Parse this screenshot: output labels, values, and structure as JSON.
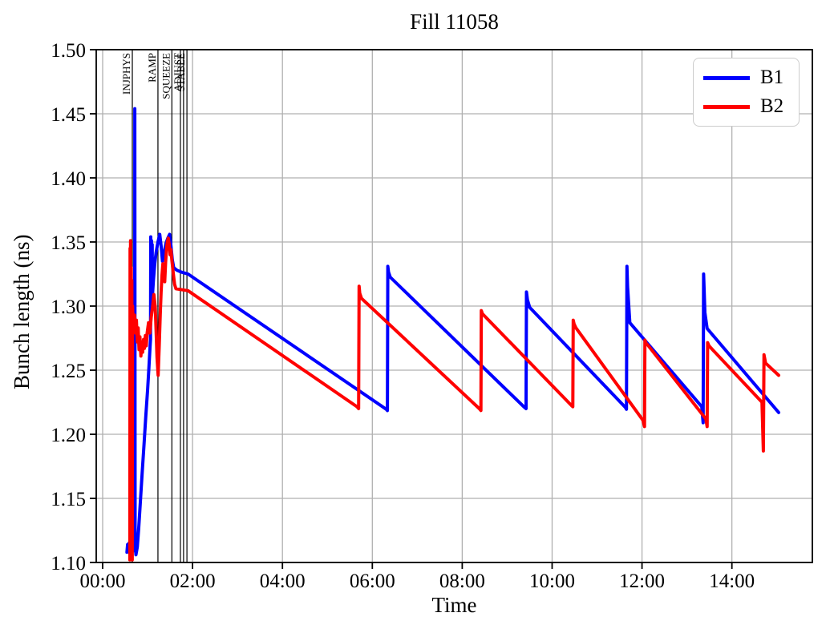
{
  "figure": {
    "background": "#ffffff"
  },
  "chart_data": {
    "type": "line",
    "title": "Fill 11058",
    "xlabel": "Time",
    "ylabel": "Bunch length (ns)",
    "xlim_hours": [
      -0.143,
      15.79
    ],
    "ylim": [
      1.1,
      1.5
    ],
    "grid": true,
    "grid_color": "#b0b0b0",
    "axis_color": "#000000",
    "x_ticks": [
      {
        "t": 0,
        "label": "00:00"
      },
      {
        "t": 2,
        "label": "02:00"
      },
      {
        "t": 4,
        "label": "04:00"
      },
      {
        "t": 6,
        "label": "06:00"
      },
      {
        "t": 8,
        "label": "08:00"
      },
      {
        "t": 10,
        "label": "10:00"
      },
      {
        "t": 12,
        "label": "12:00"
      },
      {
        "t": 14,
        "label": "14:00"
      }
    ],
    "y_ticks": [
      {
        "v": 1.1,
        "label": "1.10"
      },
      {
        "v": 1.15,
        "label": "1.15"
      },
      {
        "v": 1.2,
        "label": "1.20"
      },
      {
        "v": 1.25,
        "label": "1.25"
      },
      {
        "v": 1.3,
        "label": "1.30"
      },
      {
        "v": 1.35,
        "label": "1.35"
      },
      {
        "v": 1.4,
        "label": "1.40"
      },
      {
        "v": 1.45,
        "label": "1.45"
      },
      {
        "v": 1.5,
        "label": "1.50"
      }
    ],
    "mode_lines": [
      {
        "t": 0.66,
        "label": "INJPHYS"
      },
      {
        "t": 1.23,
        "label": "RAMP"
      },
      {
        "t": 1.54,
        "label": "SQUEEZE"
      },
      {
        "t": 1.73,
        "label": ""
      },
      {
        "t": 1.8,
        "label": "ADJUST"
      },
      {
        "t": 1.875,
        "label": "STABLE"
      }
    ],
    "legend": {
      "position": "upper right",
      "entries": [
        {
          "label": "B1",
          "color": "#0000ff"
        },
        {
          "label": "B2",
          "color": "#ff0000"
        }
      ]
    },
    "series": [
      {
        "name": "B1",
        "color": "#0000ff",
        "points": [
          [
            0.54,
            1.108
          ],
          [
            0.555,
            1.114
          ],
          [
            0.57,
            1.109
          ],
          [
            0.585,
            1.115
          ],
          [
            0.6,
            1.11
          ],
          [
            0.62,
            1.113
          ],
          [
            0.64,
            1.11
          ],
          [
            0.66,
            1.112
          ],
          [
            0.68,
            1.109
          ],
          [
            0.7,
            1.112
          ],
          [
            0.712,
            1.113
          ],
          [
            0.716,
            1.454
          ],
          [
            0.722,
            1.115
          ],
          [
            0.74,
            1.106
          ],
          [
            0.77,
            1.112
          ],
          [
            0.8,
            1.126
          ],
          [
            0.84,
            1.148
          ],
          [
            0.88,
            1.17
          ],
          [
            0.92,
            1.192
          ],
          [
            0.96,
            1.214
          ],
          [
            1.0,
            1.235
          ],
          [
            1.03,
            1.252
          ],
          [
            1.055,
            1.268
          ],
          [
            1.065,
            1.274
          ],
          [
            1.07,
            1.354
          ],
          [
            1.078,
            1.312
          ],
          [
            1.086,
            1.351
          ],
          [
            1.094,
            1.31
          ],
          [
            1.102,
            1.348
          ],
          [
            1.11,
            1.309
          ],
          [
            1.13,
            1.32
          ],
          [
            1.16,
            1.333
          ],
          [
            1.19,
            1.342
          ],
          [
            1.23,
            1.35
          ],
          [
            1.27,
            1.356
          ],
          [
            1.3,
            1.347
          ],
          [
            1.33,
            1.335
          ],
          [
            1.37,
            1.342
          ],
          [
            1.41,
            1.349
          ],
          [
            1.45,
            1.353
          ],
          [
            1.49,
            1.356
          ],
          [
            1.52,
            1.347
          ],
          [
            1.55,
            1.336
          ],
          [
            1.58,
            1.33
          ],
          [
            1.65,
            1.328
          ],
          [
            1.75,
            1.3265
          ],
          [
            1.9,
            1.325
          ],
          [
            6.31,
            1.2195
          ],
          [
            6.335,
            1.2185
          ],
          [
            6.345,
            1.331
          ],
          [
            6.36,
            1.3265
          ],
          [
            6.4,
            1.3225
          ],
          [
            9.37,
            1.2215
          ],
          [
            9.42,
            1.22
          ],
          [
            9.43,
            1.311
          ],
          [
            9.45,
            1.305
          ],
          [
            9.5,
            1.299
          ],
          [
            11.63,
            1.221
          ],
          [
            11.655,
            1.2195
          ],
          [
            11.665,
            1.331
          ],
          [
            11.68,
            1.315
          ],
          [
            11.73,
            1.287
          ],
          [
            13.33,
            1.2215
          ],
          [
            13.36,
            1.209
          ],
          [
            13.37,
            1.325
          ],
          [
            13.4,
            1.295
          ],
          [
            13.45,
            1.2825
          ],
          [
            15.04,
            1.217
          ]
        ]
      },
      {
        "name": "B2",
        "color": "#ff0000",
        "points": [
          [
            0.605,
            1.102
          ],
          [
            0.61,
            1.345
          ],
          [
            0.615,
            1.11
          ],
          [
            0.62,
            1.351
          ],
          [
            0.628,
            1.14
          ],
          [
            0.635,
            1.33
          ],
          [
            0.643,
            1.105
          ],
          [
            0.65,
            1.32
          ],
          [
            0.658,
            1.102
          ],
          [
            0.665,
            1.3
          ],
          [
            0.672,
            1.292
          ],
          [
            0.69,
            1.286
          ],
          [
            0.71,
            1.293
          ],
          [
            0.73,
            1.279
          ],
          [
            0.75,
            1.289
          ],
          [
            0.77,
            1.272
          ],
          [
            0.79,
            1.283
          ],
          [
            0.81,
            1.266
          ],
          [
            0.83,
            1.276
          ],
          [
            0.85,
            1.261
          ],
          [
            0.87,
            1.272
          ],
          [
            0.89,
            1.264
          ],
          [
            0.91,
            1.274
          ],
          [
            0.93,
            1.267
          ],
          [
            0.95,
            1.277
          ],
          [
            0.97,
            1.269
          ],
          [
            0.99,
            1.279
          ],
          [
            1.02,
            1.287
          ],
          [
            1.05,
            1.279
          ],
          [
            1.08,
            1.291
          ],
          [
            1.11,
            1.299
          ],
          [
            1.14,
            1.309
          ],
          [
            1.17,
            1.299
          ],
          [
            1.19,
            1.28
          ],
          [
            1.21,
            1.26
          ],
          [
            1.235,
            1.246
          ],
          [
            1.26,
            1.27
          ],
          [
            1.28,
            1.293
          ],
          [
            1.3,
            1.311
          ],
          [
            1.32,
            1.324
          ],
          [
            1.34,
            1.333
          ],
          [
            1.36,
            1.327
          ],
          [
            1.38,
            1.319
          ],
          [
            1.4,
            1.334
          ],
          [
            1.42,
            1.344
          ],
          [
            1.44,
            1.35
          ],
          [
            1.46,
            1.353
          ],
          [
            1.48,
            1.348
          ],
          [
            1.5,
            1.34
          ],
          [
            1.52,
            1.344
          ],
          [
            1.54,
            1.336
          ],
          [
            1.57,
            1.326
          ],
          [
            1.6,
            1.317
          ],
          [
            1.63,
            1.3135
          ],
          [
            1.72,
            1.313
          ],
          [
            1.9,
            1.312
          ],
          [
            5.66,
            1.2215
          ],
          [
            5.695,
            1.22
          ],
          [
            5.705,
            1.3155
          ],
          [
            5.72,
            1.31
          ],
          [
            5.76,
            1.306
          ],
          [
            8.38,
            1.22
          ],
          [
            8.415,
            1.2185
          ],
          [
            8.425,
            1.2965
          ],
          [
            8.45,
            1.294
          ],
          [
            8.49,
            1.2925
          ],
          [
            10.43,
            1.2225
          ],
          [
            10.46,
            1.2215
          ],
          [
            10.47,
            1.289
          ],
          [
            10.49,
            1.286
          ],
          [
            10.53,
            1.283
          ],
          [
            12.02,
            1.211
          ],
          [
            12.055,
            1.206
          ],
          [
            12.065,
            1.2735
          ],
          [
            12.09,
            1.271
          ],
          [
            12.13,
            1.2695
          ],
          [
            13.42,
            1.212
          ],
          [
            13.45,
            1.206
          ],
          [
            13.46,
            1.2715
          ],
          [
            13.49,
            1.269
          ],
          [
            13.53,
            1.2675
          ],
          [
            14.67,
            1.225
          ],
          [
            14.7,
            1.187
          ],
          [
            14.715,
            1.262
          ],
          [
            14.75,
            1.2555
          ],
          [
            15.04,
            1.246
          ]
        ]
      }
    ]
  }
}
